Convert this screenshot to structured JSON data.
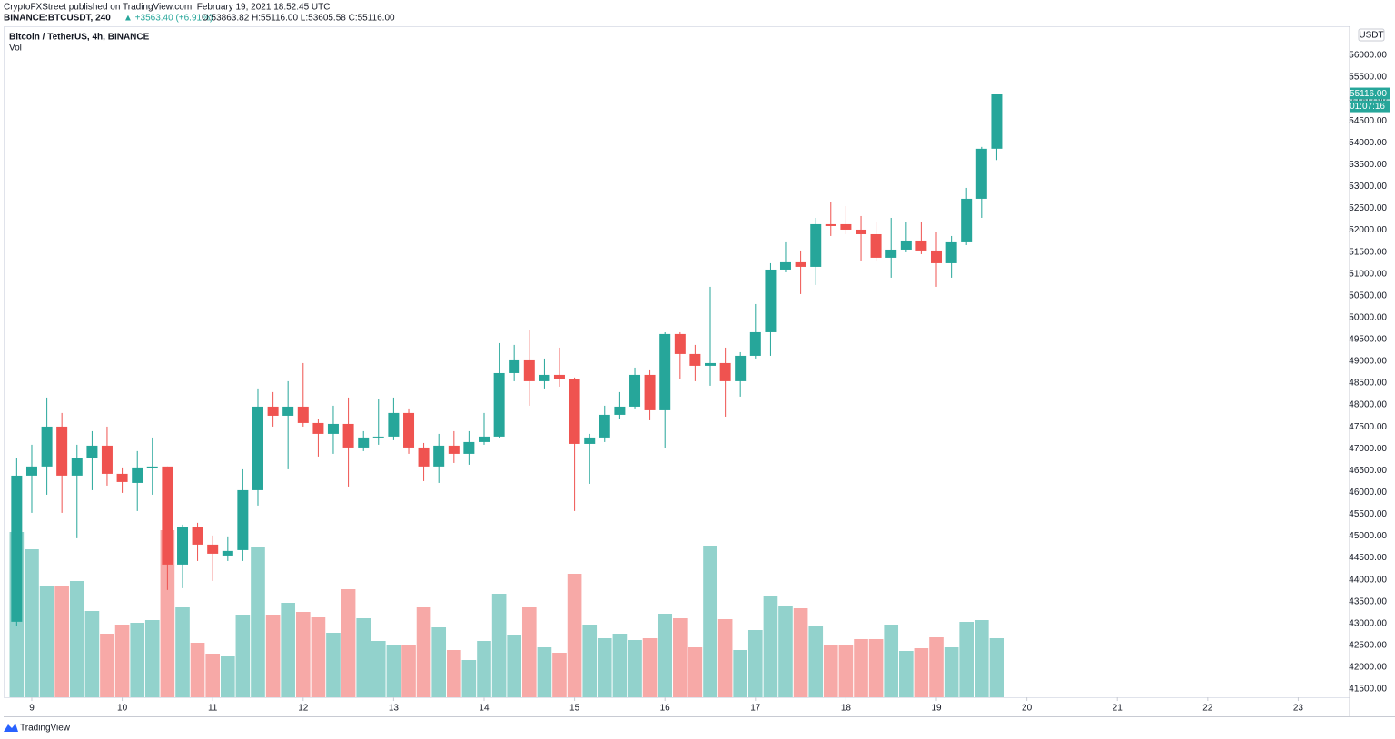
{
  "header": {
    "publisher": "CryptoFXStreet published on TradingView.com, February 19, 2021 18:52:45 UTC",
    "symbol": "BINANCE:BTCUSDT, 240",
    "change": "▲ +3563.40 (+6.91%)",
    "ohlc": "O:53863.82 H:55116.00 L:53605.58 C:55116.00"
  },
  "brand": "TradingView",
  "chart_data": {
    "type": "candlestick",
    "title": "Bitcoin / TetherUS, 4h, BINANCE",
    "volume_label": "Vol",
    "currency": "USDT",
    "countdown": "01:07:16",
    "last_price": {
      "value": 55116,
      "label": "55116.00"
    },
    "up_color": "#26a69a",
    "down_color": "#ef5350",
    "volume_up_color": "#92d2cc",
    "volume_down_color": "#f7a9a7",
    "x": [
      8.833,
      9,
      9.167,
      9.333,
      9.5,
      9.667,
      9.833,
      10,
      10.167,
      10.333,
      10.5,
      10.667,
      10.833,
      11,
      11.167,
      11.333,
      11.5,
      11.667,
      11.833,
      12,
      12.167,
      12.333,
      12.5,
      12.667,
      12.833,
      13,
      13.167,
      13.333,
      13.5,
      13.667,
      13.833,
      14,
      14.167,
      14.333,
      14.5,
      14.667,
      14.833,
      15,
      15.167,
      15.333,
      15.5,
      15.667,
      15.833,
      16,
      16.167,
      16.333,
      16.5,
      16.667,
      16.833,
      17,
      17.167,
      17.333,
      17.5,
      17.667,
      17.833,
      18,
      18.167,
      18.333,
      18.5,
      18.667,
      18.833,
      19,
      19.167,
      19.333,
      19.5,
      19.667
    ],
    "open": [
      43040,
      46384,
      46592,
      47505,
      46384,
      46778,
      47069,
      46425,
      46217,
      46550,
      46592,
      44348,
      45200,
      44805,
      44555,
      44680,
      46051,
      47962,
      47754,
      47962,
      47588,
      47339,
      47567,
      47027,
      47256,
      47277,
      47817,
      47027,
      46592,
      47069,
      46882,
      47152,
      47277,
      48730,
      49042,
      48544,
      48689,
      48585,
      47110,
      47256,
      47775,
      47962,
      48689,
      47879,
      49624,
      49167,
      48897,
      48959,
      48544,
      49125,
      49665,
      51098,
      51265,
      51161,
      52137,
      52137,
      52012,
      51908,
      51369,
      51555,
      51763,
      51535,
      51244,
      51722,
      52719,
      53863.82
    ],
    "high": [
      46778,
      47090,
      48170,
      47817,
      47090,
      47401,
      47505,
      46571,
      46945,
      47256,
      46592,
      45262,
      45304,
      45013,
      44993,
      46529,
      48378,
      48295,
      48544,
      48959,
      47671,
      47983,
      48170,
      47401,
      48128,
      48170,
      47921,
      47131,
      47339,
      47401,
      47401,
      47817,
      49416,
      49375,
      49707,
      49063,
      49312,
      48627,
      47339,
      47983,
      48295,
      48855,
      48793,
      49665,
      49665,
      49375,
      50704,
      49312,
      49208,
      50309,
      51244,
      51722,
      51535,
      52282,
      52636,
      52552,
      52324,
      52178,
      52282,
      52178,
      52178,
      51970,
      51867,
      52968,
      53905,
      55116
    ],
    "low": [
      42935,
      45532,
      45947,
      45532,
      44951,
      46051,
      46155,
      45989,
      45574,
      45947,
      43767,
      43808,
      44431,
      43974,
      44431,
      44431,
      45698,
      47505,
      46529,
      47505,
      46820,
      46882,
      46134,
      46945,
      47090,
      47194,
      46882,
      46259,
      46217,
      46674,
      46633,
      47090,
      47235,
      48544,
      47983,
      48378,
      48419,
      45574,
      46196,
      47152,
      47671,
      47921,
      47650,
      47007,
      48585,
      48544,
      48440,
      47733,
      48191,
      49063,
      49125,
      51036,
      50538,
      50746,
      51867,
      51908,
      51306,
      51306,
      50912,
      51493,
      51452,
      50704,
      50912,
      51659,
      52282,
      53605.58
    ],
    "close": [
      46383,
      46592,
      47505,
      46384,
      46778,
      47069,
      46425,
      46238,
      46571,
      46592,
      44348,
      45200,
      44805,
      44597,
      44660,
      46051,
      47962,
      47754,
      47962,
      47588,
      47339,
      47567,
      47027,
      47256,
      47277,
      47817,
      47027,
      46592,
      47069,
      46882,
      47152,
      47277,
      48730,
      49042,
      48544,
      48689,
      48585,
      47110,
      47256,
      47775,
      47962,
      48689,
      47879,
      49624,
      49167,
      48897,
      48959,
      48544,
      49125,
      49665,
      51098,
      51265,
      51161,
      52137,
      52095,
      52012,
      51908,
      51369,
      51555,
      51763,
      51535,
      51244,
      51722,
      52719,
      53863,
      55116
    ],
    "volume": [
      182,
      163,
      122,
      123,
      128,
      95,
      70,
      80,
      82,
      85,
      184,
      99,
      60,
      48,
      45,
      91,
      166,
      91,
      104,
      94,
      88,
      71,
      119,
      87,
      62,
      58,
      58,
      99,
      77,
      52,
      41,
      62,
      114,
      69,
      99,
      55,
      49,
      136,
      80,
      65,
      70,
      63,
      65,
      92,
      87,
      55,
      167,
      86,
      52,
      74,
      111,
      101,
      98,
      79,
      58,
      58,
      64,
      64,
      80,
      51,
      54,
      66,
      55,
      83,
      85,
      65
    ],
    "volume_ylim": [
      0,
      738
    ],
    "xlim": [
      8.699,
      23.568
    ],
    "xticks": [
      9,
      10,
      11,
      12,
      13,
      14,
      15,
      16,
      17,
      18,
      19,
      20,
      21,
      22,
      23
    ],
    "ylim": [
      41313,
      56644
    ],
    "yticks": [
      {
        "value": 41500,
        "label": "41500.00"
      },
      {
        "value": 42000,
        "label": "42000.00"
      },
      {
        "value": 42500,
        "label": "42500.00"
      },
      {
        "value": 43000,
        "label": "43000.00"
      },
      {
        "value": 43500,
        "label": "43500.00"
      },
      {
        "value": 44000,
        "label": "44000.00"
      },
      {
        "value": 44500,
        "label": "44500.00"
      },
      {
        "value": 45000,
        "label": "45000.00"
      },
      {
        "value": 45500,
        "label": "45500.00"
      },
      {
        "value": 46000,
        "label": "46000.00"
      },
      {
        "value": 46500,
        "label": "46500.00"
      },
      {
        "value": 47000,
        "label": "47000.00"
      },
      {
        "value": 47500,
        "label": "47500.00"
      },
      {
        "value": 48000,
        "label": "48000.00"
      },
      {
        "value": 48500,
        "label": "48500.00"
      },
      {
        "value": 49000,
        "label": "49000.00"
      },
      {
        "value": 49500,
        "label": "49500.00"
      },
      {
        "value": 50000,
        "label": "50000.00"
      },
      {
        "value": 50500,
        "label": "50500.00"
      },
      {
        "value": 51000,
        "label": "51000.00"
      },
      {
        "value": 51500,
        "label": "51500.00"
      },
      {
        "value": 52000,
        "label": "52000.00"
      },
      {
        "value": 52500,
        "label": "52500.00"
      },
      {
        "value": 53000,
        "label": "53000.00"
      },
      {
        "value": 53500,
        "label": "53500.00"
      },
      {
        "value": 54000,
        "label": "54000.00"
      },
      {
        "value": 54500,
        "label": "54500.00"
      },
      {
        "value": 55000,
        "label": "55000.00"
      },
      {
        "value": 55500,
        "label": "55500.00"
      },
      {
        "value": 56000,
        "label": "56000.00"
      }
    ]
  }
}
